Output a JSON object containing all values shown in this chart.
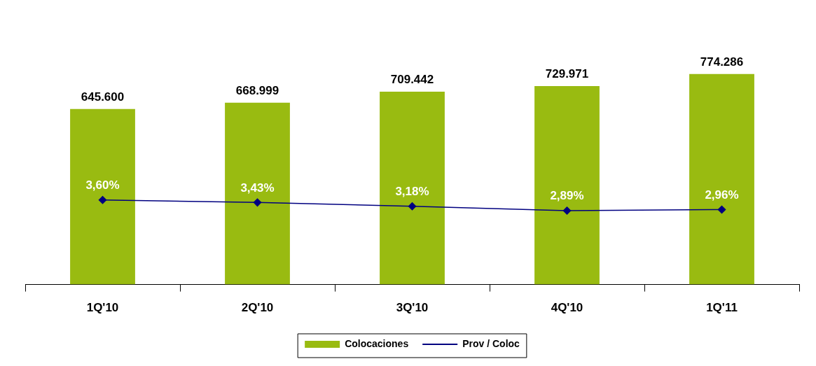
{
  "chart_data": {
    "type": "bar",
    "categories": [
      "1Q'10",
      "2Q'10",
      "3Q'10",
      "4Q'10",
      "1Q'11"
    ],
    "series": [
      {
        "name": "Colocaciones",
        "color": "#99bb11",
        "values": [
          645600,
          668999,
          709442,
          729971,
          774286
        ],
        "value_labels": [
          "645.600",
          "668.999",
          "709.442",
          "729.971",
          "774.286"
        ]
      },
      {
        "name": "Prov / Coloc",
        "type": "line",
        "axis": "y2",
        "color": "#000080",
        "marker": "diamond",
        "values": [
          3.6,
          3.43,
          3.18,
          2.89,
          2.96
        ],
        "value_labels": [
          "3,60%",
          "3,43%",
          "3,18%",
          "2,89%",
          "2,96%"
        ]
      }
    ],
    "tick_labels": "x",
    "grid": false,
    "legend": "bottom"
  }
}
